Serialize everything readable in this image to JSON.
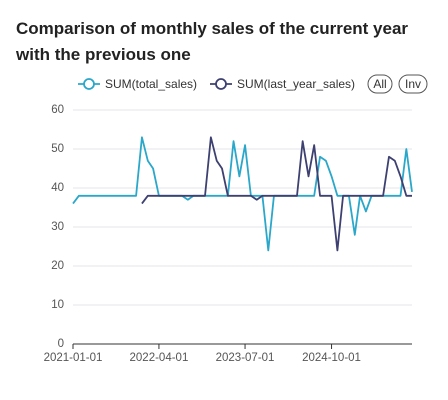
{
  "chart_data": {
    "type": "line",
    "title": "Comparison of monthly sales of the current year with the previous one",
    "x": [
      "2021-01-01",
      "2021-02-01",
      "2021-03-01",
      "2021-04-01",
      "2021-05-01",
      "2021-06-01",
      "2021-07-01",
      "2021-08-01",
      "2021-09-01",
      "2021-10-01",
      "2021-11-01",
      "2021-12-01",
      "2022-01-01",
      "2022-02-01",
      "2022-03-01",
      "2022-04-01",
      "2022-05-01",
      "2022-06-01",
      "2022-07-01",
      "2022-08-01",
      "2022-09-01",
      "2022-10-01",
      "2022-11-01",
      "2022-12-01",
      "2023-01-01",
      "2023-02-01",
      "2023-03-01",
      "2023-04-01",
      "2023-05-01",
      "2023-06-01",
      "2023-07-01",
      "2023-08-01",
      "2023-09-01",
      "2023-10-01",
      "2023-11-01",
      "2023-12-01",
      "2024-01-01",
      "2024-02-01",
      "2024-03-01",
      "2024-04-01",
      "2024-05-01",
      "2024-06-01",
      "2024-07-01",
      "2024-08-01",
      "2024-09-01",
      "2024-10-01",
      "2024-11-01",
      "2024-12-01",
      "2025-01-01",
      "2025-02-01",
      "2025-03-01",
      "2025-04-01",
      "2025-05-01",
      "2025-06-01",
      "2025-07-01",
      "2025-08-01",
      "2025-09-01",
      "2025-10-01",
      "2025-11-01",
      "2025-12-01"
    ],
    "series": [
      {
        "name": "SUM(total_sales)",
        "color": "#2aa7c9",
        "values": [
          36,
          38,
          38,
          38,
          38,
          38,
          38,
          38,
          38,
          38,
          38,
          38,
          53,
          47,
          45,
          38,
          38,
          38,
          38,
          38,
          37,
          38,
          38,
          38,
          38,
          38,
          38,
          38,
          52,
          43,
          51,
          38,
          38,
          38,
          24,
          38,
          38,
          38,
          38,
          38,
          38,
          38,
          38,
          48,
          47,
          43,
          38,
          38,
          38,
          28,
          38,
          34,
          38,
          38,
          38,
          38,
          38,
          38,
          50,
          39
        ]
      },
      {
        "name": "SUM(last_year_sales)",
        "color": "#3d4070",
        "values": [
          null,
          null,
          null,
          null,
          null,
          null,
          null,
          null,
          null,
          null,
          null,
          null,
          36,
          38,
          38,
          38,
          38,
          38,
          38,
          38,
          38,
          38,
          38,
          38,
          53,
          47,
          45,
          38,
          38,
          38,
          38,
          38,
          37,
          38,
          38,
          38,
          38,
          38,
          38,
          38,
          52,
          43,
          51,
          38,
          38,
          38,
          24,
          38,
          38,
          38,
          38,
          38,
          38,
          38,
          38,
          48,
          47,
          43,
          38,
          38
        ]
      }
    ],
    "xlim": [
      "2021-01-01",
      "2025-12-01"
    ],
    "xticks": [
      "2021-01-01",
      "2022-04-01",
      "2023-07-01",
      "2024-10-01"
    ],
    "ylim": [
      0,
      60
    ],
    "yticks": [
      0,
      10,
      20,
      30,
      40,
      50,
      60
    ],
    "grid": true,
    "buttons": [
      "All",
      "Inv"
    ]
  }
}
